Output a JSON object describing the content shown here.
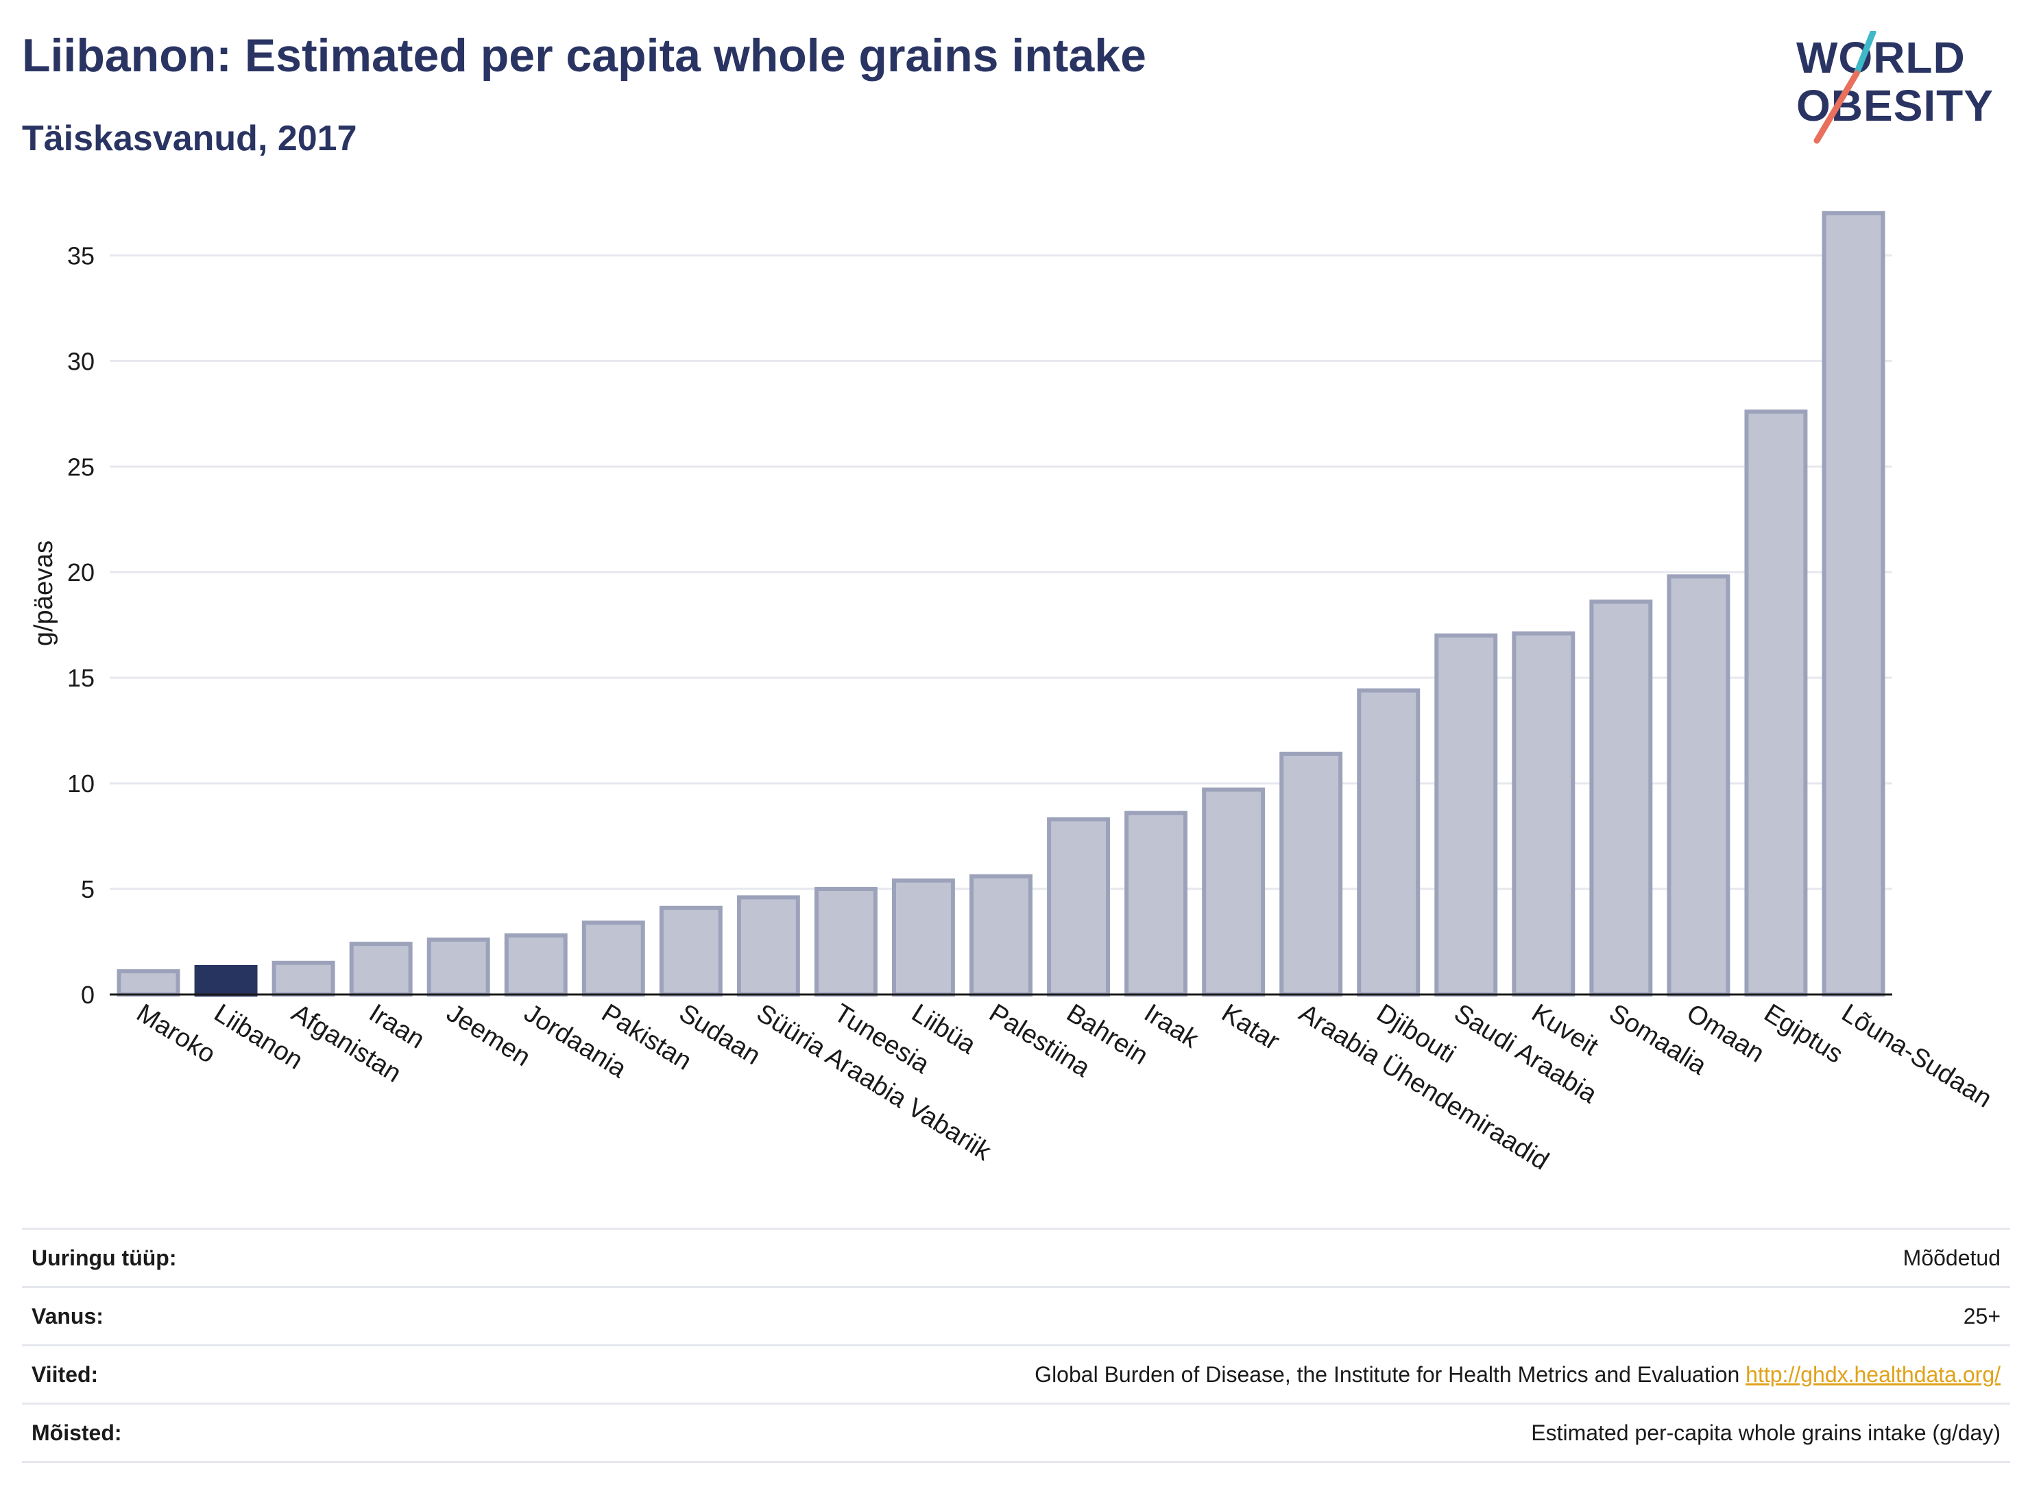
{
  "header": {
    "title": "Liibanon: Estimated per capita whole grains intake",
    "subtitle": "Täiskasvanud, 2017"
  },
  "logo": {
    "line1": "WORLD",
    "line2": "OBESITY",
    "colors": {
      "text": "#2a3463",
      "slash_top": "#3fb8c8",
      "slash_bottom": "#e8705c"
    }
  },
  "chart_data": {
    "type": "bar",
    "ylabel": "g/päevas",
    "ylim": [
      0,
      38
    ],
    "yticks": [
      0,
      5,
      10,
      15,
      20,
      25,
      30,
      35
    ],
    "grid": true,
    "highlight": "Liibanon",
    "colors": {
      "bar": "#c0c3d2",
      "bar_border": "#9da2bb",
      "highlight": "#283460",
      "grid": "#e6e8ee",
      "axis": "#1a1a1a"
    },
    "categories": [
      "Maroko",
      "Liibanon",
      "Afganistan",
      "Iraan",
      "Jeemen",
      "Jordaania",
      "Pakistan",
      "Sudaan",
      "Süüria Araabia Vabariik",
      "Tuneesia",
      "Liibüa",
      "Palestiina",
      "Bahrein",
      "Iraak",
      "Katar",
      "Araabia Ühendemiraadid",
      "Djibouti",
      "Saudi Araabia",
      "Kuveit",
      "Somaalia",
      "Omaan",
      "Egiptus",
      "Lõuna-Sudaan"
    ],
    "values": [
      1.1,
      1.3,
      1.5,
      2.4,
      2.6,
      2.8,
      3.4,
      4.1,
      4.6,
      5.0,
      5.4,
      5.6,
      8.3,
      8.6,
      9.7,
      11.4,
      14.4,
      17.0,
      17.1,
      18.6,
      19.8,
      27.6,
      37.0
    ]
  },
  "meta": [
    {
      "key": "Uuringu tüüp:",
      "value": "Mõõdetud"
    },
    {
      "key": "Vanus:",
      "value": "25+"
    },
    {
      "key": "Viited:",
      "value": "Global Burden of Disease, the Institute for Health Metrics and Evaluation",
      "link": "http://ghdx.healthdata.org/"
    },
    {
      "key": "Mõisted:",
      "value": "Estimated per-capita whole grains intake (g/day)"
    }
  ]
}
